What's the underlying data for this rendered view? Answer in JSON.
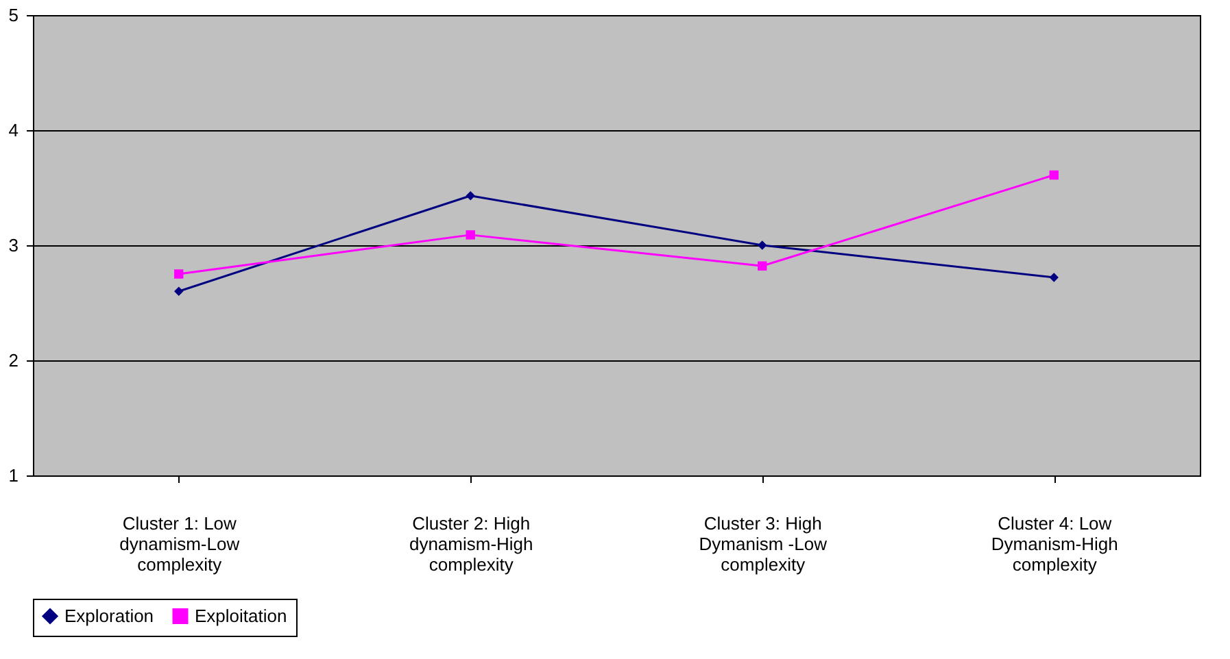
{
  "chart_data": {
    "type": "line",
    "categories": [
      "Cluster 1: Low dynamism-Low complexity",
      "Cluster 2: High dynamism-High complexity",
      "Cluster 3: High Dymanism -Low complexity",
      "Cluster 4:  Low Dymanism-High complexity"
    ],
    "series": [
      {
        "name": "Exploration",
        "color": "#000080",
        "marker": "diamond",
        "values": [
          2.6,
          3.43,
          3.0,
          2.72
        ]
      },
      {
        "name": "Exploitation",
        "color": "#ff00ff",
        "marker": "square",
        "values": [
          2.75,
          3.09,
          2.82,
          3.61
        ]
      }
    ],
    "ylim": [
      1,
      5
    ],
    "yticks": [
      1,
      2,
      3,
      4,
      5
    ],
    "grid": "y",
    "legend": "bottom",
    "line_style": "solid"
  }
}
